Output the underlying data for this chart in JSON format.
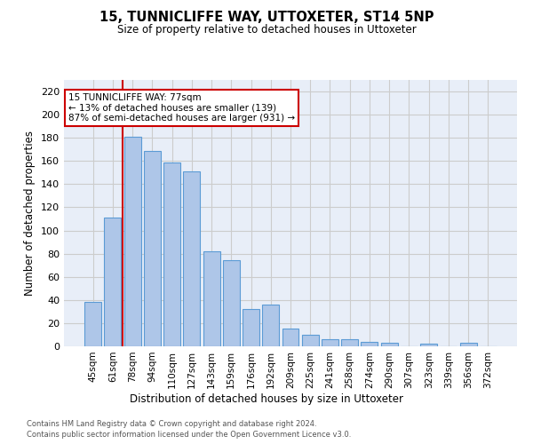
{
  "title_line1": "15, TUNNICLIFFE WAY, UTTOXETER, ST14 5NP",
  "title_line2": "Size of property relative to detached houses in Uttoxeter",
  "xlabel": "Distribution of detached houses by size in Uttoxeter",
  "ylabel": "Number of detached properties",
  "categories": [
    "45sqm",
    "61sqm",
    "78sqm",
    "94sqm",
    "110sqm",
    "127sqm",
    "143sqm",
    "159sqm",
    "176sqm",
    "192sqm",
    "209sqm",
    "225sqm",
    "241sqm",
    "258sqm",
    "274sqm",
    "290sqm",
    "307sqm",
    "323sqm",
    "339sqm",
    "356sqm",
    "372sqm"
  ],
  "values": [
    38,
    111,
    181,
    169,
    159,
    151,
    82,
    74,
    32,
    36,
    15,
    10,
    6,
    6,
    4,
    3,
    0,
    2,
    0,
    3,
    0
  ],
  "bar_color": "#aec6e8",
  "bar_edgecolor": "#5b9bd5",
  "vline_x": 1.5,
  "vline_color": "#cc0000",
  "annotation_text": "15 TUNNICLIFFE WAY: 77sqm\n← 13% of detached houses are smaller (139)\n87% of semi-detached houses are larger (931) →",
  "annotation_box_edgecolor": "#cc0000",
  "ylim": [
    0,
    230
  ],
  "yticks": [
    0,
    20,
    40,
    60,
    80,
    100,
    120,
    140,
    160,
    180,
    200,
    220
  ],
  "grid_color": "#cccccc",
  "bg_color": "#e8eef8",
  "footer_line1": "Contains HM Land Registry data © Crown copyright and database right 2024.",
  "footer_line2": "Contains public sector information licensed under the Open Government Licence v3.0."
}
